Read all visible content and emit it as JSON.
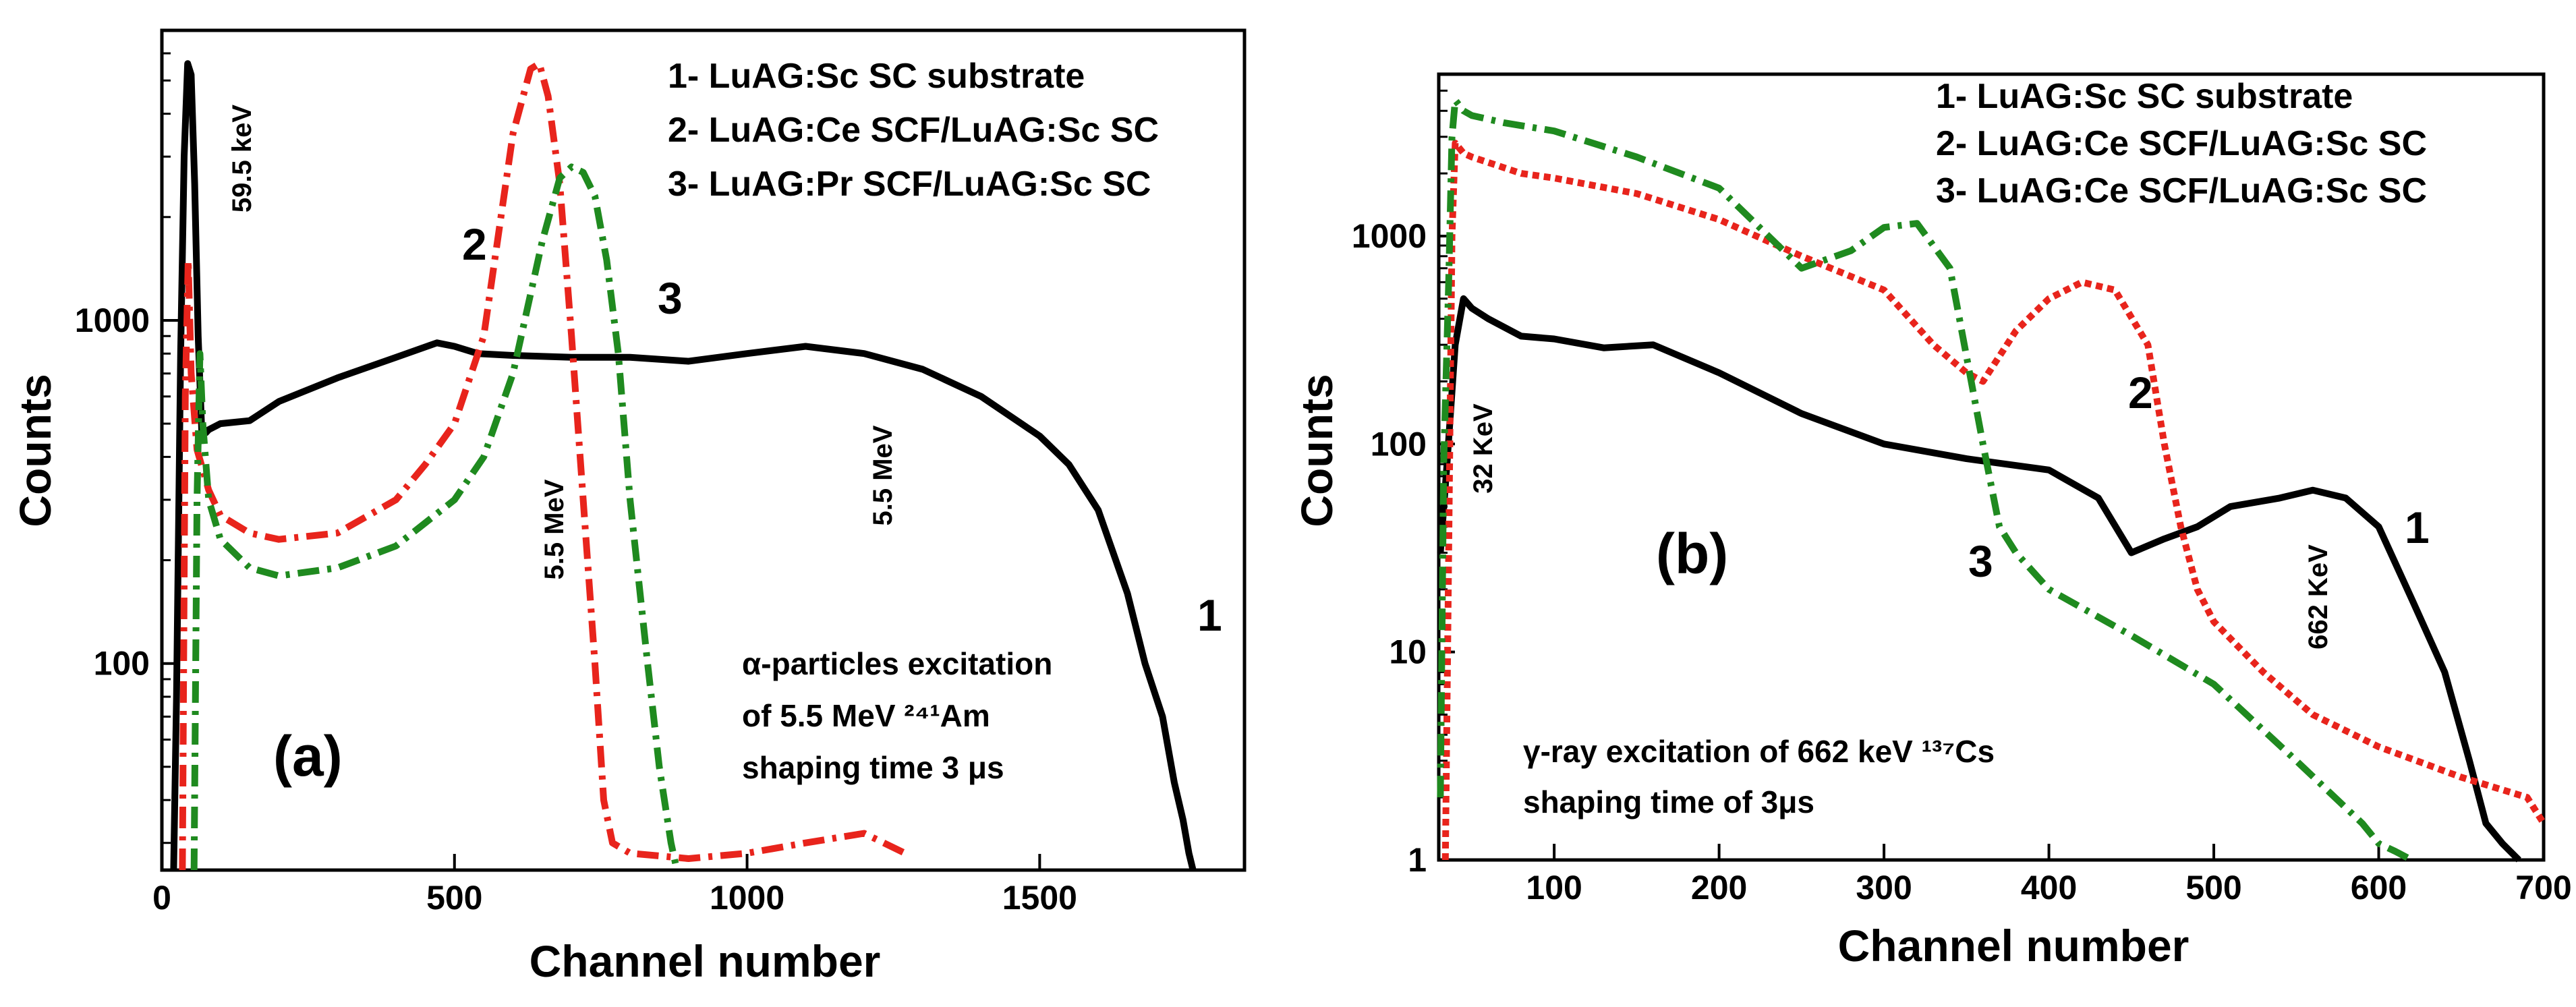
{
  "chart_data": [
    {
      "type": "line",
      "panel": "(a)",
      "xlabel": "Channel number",
      "ylabel": "Counts",
      "y_scale": "log",
      "xlim": [
        0,
        1850
      ],
      "ylim": [
        25,
        7000
      ],
      "x_ticks": [
        0,
        500,
        1000,
        1500
      ],
      "x_tick_labels": [
        "0",
        "500",
        "1000",
        "1500"
      ],
      "y_ticks": [
        100,
        1000
      ],
      "y_tick_labels": [
        "100",
        "1000"
      ],
      "legend": [
        "1- LuAG:Sc SC substrate",
        "2- LuAG:Ce SCF/LuAG:Sc SC",
        "3- LuAG:Pr SCF/LuAG:Sc SC"
      ],
      "notes": [
        "α-particles excitation",
        "of 5.5 MeV ²⁴¹Am",
        "shaping time 3 μs"
      ],
      "annotations": [
        "59.5 keV",
        "5.5 MeV",
        "5.5 MeV"
      ],
      "curve_labels": [
        "1",
        "2",
        "3"
      ],
      "series": [
        {
          "name": "1",
          "color": "#000000",
          "style": "solid",
          "x": [
            20,
            25,
            32,
            38,
            44,
            50,
            56,
            62,
            68,
            75,
            80,
            100,
            150,
            200,
            300,
            400,
            470,
            500,
            540,
            600,
            700,
            800,
            900,
            1000,
            1100,
            1200,
            1300,
            1400,
            1500,
            1550,
            1600,
            1650,
            1680,
            1710,
            1730,
            1745,
            1755,
            1762
          ],
          "y": [
            25,
            80,
            800,
            3000,
            5600,
            5200,
            2500,
            900,
            480,
            470,
            480,
            500,
            510,
            580,
            680,
            780,
            860,
            840,
            800,
            790,
            780,
            780,
            760,
            800,
            840,
            800,
            720,
            600,
            460,
            380,
            280,
            160,
            100,
            70,
            45,
            35,
            28,
            25
          ]
        },
        {
          "name": "2",
          "color": "#e8241c",
          "style": "dash-dot",
          "x": [
            35,
            40,
            45,
            50,
            60,
            80,
            100,
            150,
            200,
            300,
            400,
            450,
            500,
            550,
            600,
            630,
            645,
            660,
            680,
            700,
            720,
            740,
            755,
            770,
            800,
            900,
            1000,
            1100,
            1200,
            1270
          ],
          "y": [
            25,
            600,
            1500,
            700,
            420,
            320,
            270,
            240,
            230,
            240,
            300,
            380,
            500,
            900,
            3500,
            5400,
            5600,
            4500,
            2500,
            900,
            300,
            100,
            40,
            30,
            28,
            27,
            28,
            30,
            32,
            28
          ]
        },
        {
          "name": "3",
          "color": "#1f8a1f",
          "style": "dash-dot",
          "x": [
            55,
            60,
            65,
            70,
            80,
            100,
            150,
            200,
            300,
            400,
            500,
            550,
            600,
            650,
            680,
            700,
            720,
            740,
            760,
            780,
            800,
            830,
            850,
            870,
            880
          ],
          "y": [
            25,
            300,
            800,
            500,
            300,
            230,
            190,
            180,
            190,
            220,
            300,
            400,
            700,
            1700,
            2600,
            2800,
            2700,
            2300,
            1500,
            800,
            300,
            100,
            50,
            30,
            25
          ]
        }
      ]
    },
    {
      "type": "line",
      "panel": "(b)",
      "xlabel": "Channel number",
      "ylabel": "Counts",
      "y_scale": "log",
      "xlim": [
        30,
        700
      ],
      "ylim": [
        1,
        6000
      ],
      "x_ticks": [
        100,
        200,
        300,
        400,
        500,
        600,
        700
      ],
      "x_tick_labels": [
        "100",
        "200",
        "300",
        "400",
        "500",
        "600",
        "700"
      ],
      "y_ticks": [
        1,
        10,
        100,
        1000
      ],
      "y_tick_labels": [
        "1",
        "10",
        "100",
        "1000"
      ],
      "legend": [
        "1- LuAG:Sc SC substrate",
        "2- LuAG:Ce SCF/LuAG:Sc SC",
        "3- LuAG:Ce SCF/LuAG:Sc SC"
      ],
      "notes": [
        "γ-ray excitation of 662 keV ¹³⁷Cs",
        "shaping time of 3μs"
      ],
      "annotations": [
        "32 KeV",
        "662 KeV"
      ],
      "curve_labels": [
        "1",
        "2",
        "3"
      ],
      "series": [
        {
          "name": "1",
          "color": "#000000",
          "style": "solid",
          "x": [
            31,
            35,
            40,
            45,
            50,
            60,
            80,
            100,
            130,
            160,
            200,
            250,
            300,
            350,
            400,
            430,
            450,
            470,
            490,
            510,
            540,
            560,
            580,
            600,
            620,
            640,
            655,
            665,
            675,
            685
          ],
          "y": [
            30,
            80,
            300,
            500,
            450,
            400,
            330,
            320,
            290,
            300,
            220,
            140,
            100,
            85,
            75,
            55,
            30,
            35,
            40,
            50,
            55,
            60,
            55,
            40,
            18,
            8,
            3,
            1.5,
            1.2,
            1
          ]
        },
        {
          "name": "2",
          "color": "#e8241c",
          "style": "dotted",
          "x": [
            34,
            36,
            38,
            40,
            45,
            50,
            80,
            100,
            150,
            200,
            250,
            300,
            330,
            350,
            360,
            380,
            400,
            420,
            440,
            460,
            470,
            480,
            490,
            500,
            530,
            560,
            600,
            650,
            690,
            700
          ],
          "y": [
            1,
            30,
            1000,
            2800,
            2500,
            2400,
            2000,
            1900,
            1600,
            1200,
            800,
            550,
            300,
            220,
            200,
            350,
            500,
            600,
            550,
            300,
            100,
            40,
            20,
            14,
            8,
            5,
            3.5,
            2.5,
            2,
            1.5
          ]
        },
        {
          "name": "3",
          "color": "#1f8a1f",
          "style": "dash-dot",
          "x": [
            31,
            33,
            36,
            38,
            40,
            45,
            50,
            70,
            100,
            150,
            200,
            250,
            280,
            300,
            320,
            340,
            360,
            370,
            380,
            400,
            450,
            500,
            550,
            590,
            600,
            610,
            620
          ],
          "y": [
            2,
            80,
            600,
            3000,
            4500,
            4000,
            3800,
            3500,
            3200,
            2400,
            1700,
            700,
            850,
            1100,
            1150,
            700,
            100,
            40,
            30,
            20,
            12,
            7,
            3,
            1.5,
            1.2,
            1.1,
            1
          ]
        }
      ]
    }
  ]
}
